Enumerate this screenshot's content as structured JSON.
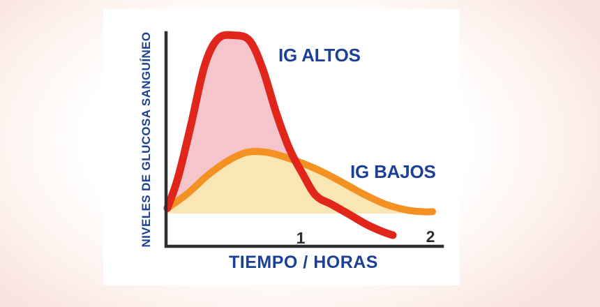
{
  "background": {
    "edge_color": "#f8e2df",
    "panel_color": "#ffffff"
  },
  "colors": {
    "text_blue": "#1c4093",
    "axis": "#2e2e2e",
    "tick_text": "#2e2e2e"
  },
  "labels": {
    "y_axis": "NIVELES DE GLUCOSA SANGUÍNEO",
    "x_axis": "TIEMPO / HORAS"
  },
  "chart_data": {
    "type": "line",
    "title": "",
    "xlabel": "TIEMPO / HORAS",
    "ylabel": "NIVELES DE GLUCOSA SANGUÍNEO",
    "x_ticks": [
      "1",
      "2"
    ],
    "xlim": [
      0,
      2.07
    ],
    "ylim": [
      -15,
      105
    ],
    "baseline": 0,
    "grid": false,
    "legend_position": "inline-annotations",
    "y_axis_note": "relative blood glucose level, no numeric ticks shown",
    "series": [
      {
        "name": "IG ALTOS",
        "color": "#e0251b",
        "fill": "#f6c5cc",
        "x": [
          0,
          0.08,
          0.18,
          0.28,
          0.38,
          0.5,
          0.62,
          0.72,
          0.82,
          0.92,
          1.02,
          1.12,
          1.24,
          1.36,
          1.5,
          1.62,
          1.7
        ],
        "y": [
          3,
          20,
          50,
          82,
          97,
          99,
          96,
          80,
          56,
          36,
          22,
          10,
          5,
          0,
          -6,
          -10,
          -12
        ]
      },
      {
        "name": "IG BAJOS",
        "color": "#f39122",
        "fill": "#fae6b4",
        "x": [
          0,
          0.15,
          0.3,
          0.45,
          0.6,
          0.75,
          0.9,
          1.05,
          1.2,
          1.35,
          1.5,
          1.65,
          1.8,
          1.92,
          2.0
        ],
        "y": [
          3,
          11,
          21,
          29,
          34,
          34,
          31,
          27,
          22,
          16,
          10,
          5,
          2,
          1,
          1
        ]
      }
    ]
  }
}
